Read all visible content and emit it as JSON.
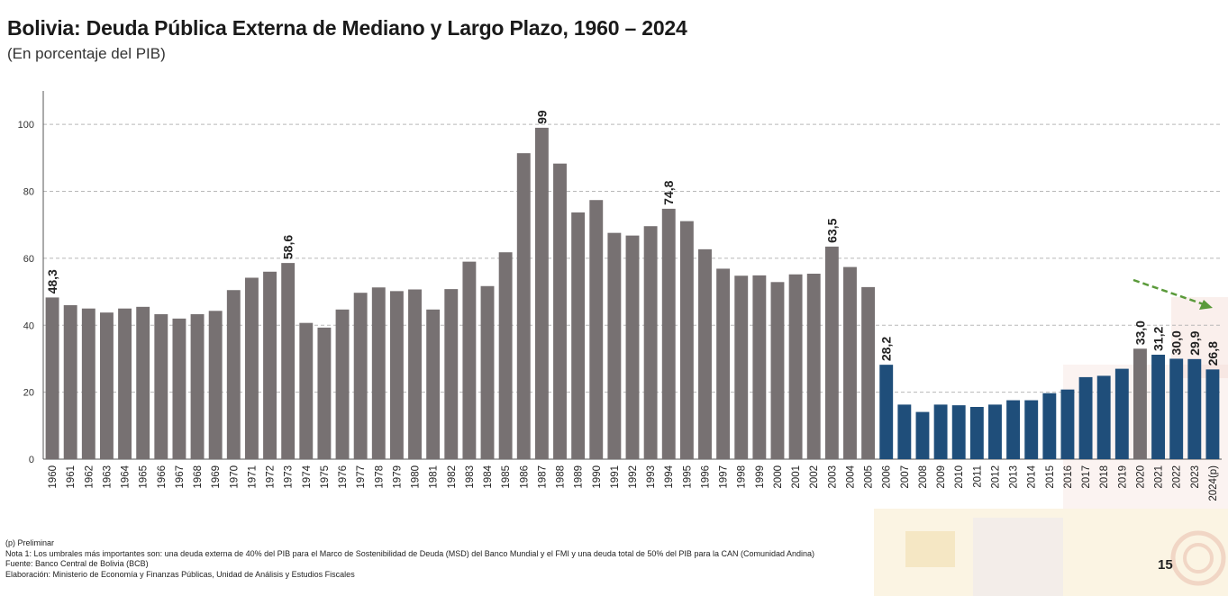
{
  "title": "Bolivia: Deuda Pública Externa de Mediano y Largo Plazo, 1960 – 2024",
  "subtitle": "(En porcentaje del PIB)",
  "chart_data": {
    "type": "bar",
    "title": "Bolivia: Deuda Pública Externa de Mediano y Largo Plazo, 1960 – 2024",
    "subtitle": "(En porcentaje del PIB)",
    "ylim": [
      0,
      110
    ],
    "yticks": [
      0,
      20,
      40,
      60,
      80,
      100
    ],
    "grid": true,
    "categories": [
      "1960",
      "1961",
      "1962",
      "1963",
      "1964",
      "1965",
      "1966",
      "1967",
      "1968",
      "1969",
      "1970",
      "1971",
      "1972",
      "1973",
      "1974",
      "1975",
      "1976",
      "1977",
      "1978",
      "1979",
      "1980",
      "1981",
      "1982",
      "1983",
      "1984",
      "1985",
      "1986",
      "1987",
      "1988",
      "1989",
      "1990",
      "1991",
      "1992",
      "1993",
      "1994",
      "1995",
      "1996",
      "1997",
      "1998",
      "1999",
      "2000",
      "2001",
      "2002",
      "2003",
      "2004",
      "2005",
      "2006",
      "2007",
      "2008",
      "2009",
      "2010",
      "2011",
      "2012",
      "2013",
      "2014",
      "2015",
      "2016",
      "2017",
      "2018",
      "2019",
      "2020",
      "2021",
      "2022",
      "2023",
      "2024(p)"
    ],
    "values": [
      48.3,
      46.0,
      45.0,
      43.8,
      45.0,
      45.5,
      43.3,
      42.0,
      43.3,
      44.3,
      50.5,
      54.2,
      56.0,
      58.6,
      40.7,
      39.3,
      44.7,
      49.7,
      51.3,
      50.2,
      50.7,
      44.7,
      50.8,
      59.0,
      51.7,
      61.8,
      91.4,
      99,
      88.3,
      73.7,
      77.4,
      67.6,
      66.8,
      69.6,
      74.8,
      71.1,
      62.7,
      56.9,
      54.8,
      54.9,
      52.9,
      55.2,
      55.4,
      63.5,
      57.4,
      51.4,
      28.2,
      16.3,
      14.1,
      16.3,
      16.1,
      15.6,
      16.3,
      17.6,
      17.6,
      19.7,
      20.8,
      24.5,
      24.9,
      27.0,
      33.0,
      31.2,
      30.0,
      29.9,
      26.8
    ],
    "colors": [
      "#777172",
      "#777172",
      "#777172",
      "#777172",
      "#777172",
      "#777172",
      "#777172",
      "#777172",
      "#777172",
      "#777172",
      "#777172",
      "#777172",
      "#777172",
      "#777172",
      "#777172",
      "#777172",
      "#777172",
      "#777172",
      "#777172",
      "#777172",
      "#777172",
      "#777172",
      "#777172",
      "#777172",
      "#777172",
      "#777172",
      "#777172",
      "#777172",
      "#777172",
      "#777172",
      "#777172",
      "#777172",
      "#777172",
      "#777172",
      "#777172",
      "#777172",
      "#777172",
      "#777172",
      "#777172",
      "#777172",
      "#777172",
      "#777172",
      "#777172",
      "#777172",
      "#777172",
      "#777172",
      "#1f4e7a",
      "#1f4e7a",
      "#1f4e7a",
      "#1f4e7a",
      "#1f4e7a",
      "#1f4e7a",
      "#1f4e7a",
      "#1f4e7a",
      "#1f4e7a",
      "#1f4e7a",
      "#1f4e7a",
      "#1f4e7a",
      "#1f4e7a",
      "#1f4e7a",
      "#777172",
      "#1f4e7a",
      "#1f4e7a",
      "#1f4e7a",
      "#1f4e7a"
    ],
    "data_labels": [
      {
        "index": 0,
        "text": "48,3"
      },
      {
        "index": 13,
        "text": "58,6"
      },
      {
        "index": 27,
        "text": "99"
      },
      {
        "index": 34,
        "text": "74,8"
      },
      {
        "index": 43,
        "text": "63,5"
      },
      {
        "index": 46,
        "text": "28,2"
      },
      {
        "index": 60,
        "text": "33,0"
      },
      {
        "index": 61,
        "text": "31,2"
      },
      {
        "index": 62,
        "text": "30,0"
      },
      {
        "index": 63,
        "text": "29,9"
      },
      {
        "index": 64,
        "text": "26,8"
      }
    ],
    "trend_arrow_color": "#5a9a3a"
  },
  "notes": {
    "preliminar": "(p) Preliminar",
    "nota1": "Nota 1: Los umbrales más importantes son: una deuda externa de 40% del PIB para el Marco de Sostenibilidad de Deuda (MSD) del Banco Mundial y el FMI y una deuda total de 50% del PIB para la CAN (Comunidad Andina)",
    "fuente": "Fuente: Banco Central de Bolivia (BCB)",
    "elaboracion": "Elaboración: Ministerio de Economía y Finanzas Públicas, Unidad de Análisis y Estudios Fiscales"
  },
  "page_number": "15"
}
